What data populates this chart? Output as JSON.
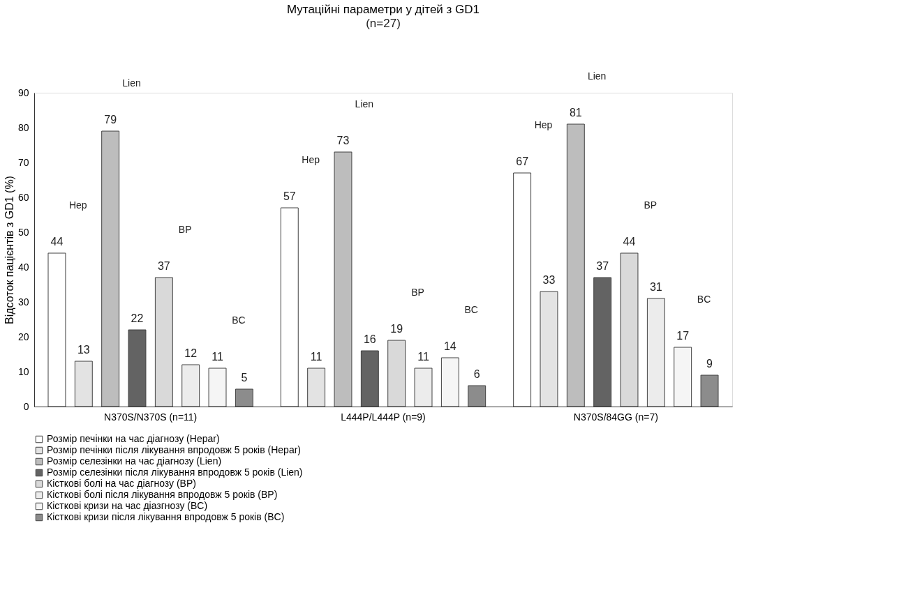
{
  "chart_data": {
    "type": "bar",
    "title": "Мутаційні параметри у дітей з GD1",
    "subtitle": "(n=27)",
    "ylabel": "Відсоток пацієнтів з GD1 (%)",
    "categories": [
      "N370S/N370S (n=11)",
      "L444P/L444P (n=9)",
      "N370S/84GG (n=7)"
    ],
    "series": [
      {
        "name": "Розмір печінки на час діагнозу (Hepar)",
        "color": "#ffffff",
        "values": [
          44,
          57,
          67
        ]
      },
      {
        "name": "Розмір печінки після лікування впродовж 5 років (Hepar)",
        "color": "#e3e3e3",
        "values": [
          13,
          11,
          33
        ]
      },
      {
        "name": "Розмір селезінки на час діагнозу (Lien)",
        "color": "#bdbdbd",
        "values": [
          79,
          73,
          81
        ]
      },
      {
        "name": "Розмір селезінки після лікування впродовж 5 років (Lien)",
        "color": "#636363",
        "values": [
          22,
          16,
          37
        ]
      },
      {
        "name": "Кісткові болі на час діагнозу (BP)",
        "color": "#d9d9d9",
        "values": [
          37,
          19,
          44
        ]
      },
      {
        "name": "Кісткові болі після лікування впродовж 5 років (BP)",
        "color": "#ececec",
        "values": [
          12,
          11,
          31
        ]
      },
      {
        "name": "Кісткові кризи на час діазгнозу (BC)",
        "color": "#f5f5f5",
        "values": [
          11,
          14,
          17
        ]
      },
      {
        "name": "Кісткові кризи після лікування впродовж 5 років (BC)",
        "color": "#8c8c8c",
        "values": [
          5,
          6,
          9
        ]
      }
    ],
    "ylim": [
      0,
      90
    ],
    "yticks": [
      0,
      10,
      20,
      30,
      40,
      50,
      60,
      70,
      80,
      90
    ],
    "grid": false,
    "legend": "bottom",
    "data_labels": true,
    "annotations": [
      "Hep",
      "Lien",
      "BP",
      "BC",
      "Hep",
      "Lien",
      "BP",
      "BC",
      "Hep",
      "Lien",
      "BP",
      "BC"
    ]
  }
}
